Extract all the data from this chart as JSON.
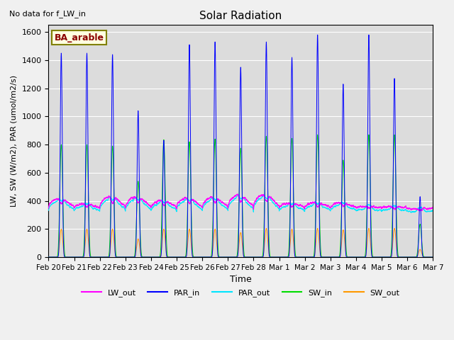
{
  "title": "Solar Radiation",
  "note": "No data for f_LW_in",
  "legend_label": "BA_arable",
  "xlabel": "Time",
  "ylabel": "LW, SW (W/m2), PAR (umol/m2/s)",
  "ylim": [
    0,
    1650
  ],
  "yticks": [
    0,
    200,
    400,
    600,
    800,
    1000,
    1200,
    1400,
    1600
  ],
  "colors": {
    "LW_out": "#ff00ff",
    "PAR_in": "#0000ff",
    "PAR_out": "#00e5ff",
    "SW_in": "#00dd00",
    "SW_out": "#ff9900"
  },
  "fig_facecolor": "#f0f0f0",
  "ax_facecolor": "#dcdcdc",
  "n_days": 15,
  "pts_per_day": 288,
  "PAR_in_peaks": [
    1450,
    1450,
    1440,
    1040,
    830,
    1510,
    1530,
    1350,
    1530,
    1420,
    1580,
    1230,
    1580,
    1270,
    430
  ],
  "SW_in_peaks": [
    800,
    800,
    790,
    540,
    835,
    820,
    840,
    775,
    860,
    845,
    870,
    690,
    870,
    870,
    235
  ],
  "SW_out_peaks": [
    200,
    200,
    200,
    130,
    200,
    200,
    200,
    175,
    205,
    200,
    205,
    195,
    205,
    205,
    55
  ],
  "LW_out_base": 350,
  "LW_out_peaks": [
    420,
    380,
    435,
    430,
    405,
    425,
    430,
    445,
    450,
    385,
    390,
    390,
    360,
    360,
    340
  ],
  "LW_out_troughs": [
    305,
    315,
    300,
    305,
    305,
    305,
    310,
    300,
    295,
    295,
    295,
    300,
    325,
    320,
    315
  ],
  "tick_labels": [
    "Feb 20",
    "Feb 21",
    "Feb 22",
    "Feb 23",
    "Feb 24",
    "Feb 25",
    "Feb 26",
    "Feb 27",
    "Feb 28",
    "Mar 1",
    "Mar 2",
    "Mar 3",
    "Mar 4",
    "Mar 5",
    "Mar 6",
    "Mar 7"
  ]
}
